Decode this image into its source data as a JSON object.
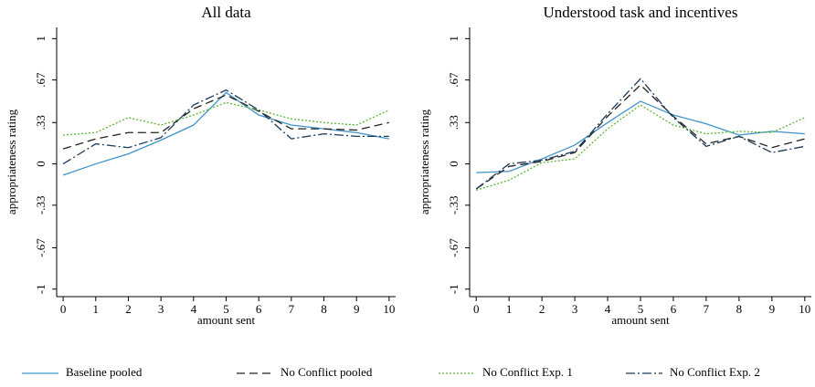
{
  "chart_data": [
    {
      "type": "line",
      "title": "All data",
      "x_label": "amount sent",
      "y_label": "appropriateness rating",
      "x": [
        0,
        1,
        2,
        3,
        4,
        5,
        6,
        7,
        8,
        9,
        10
      ],
      "xlim": [
        -0.2,
        10.2
      ],
      "xticks": [
        0,
        1,
        2,
        3,
        4,
        5,
        6,
        7,
        8,
        9,
        10
      ],
      "ylim": [
        -1.06,
        1.09
      ],
      "yticks": [
        -1,
        {
          "value": -0.67,
          "label": "-.67"
        },
        {
          "value": -0.33,
          "label": "-.33"
        },
        0,
        {
          "value": 0.33,
          "label": ".33"
        },
        {
          "value": 0.67,
          "label": ".67"
        },
        1
      ],
      "series": [
        {
          "name": "Baseline pooled",
          "color": "#3f93c9",
          "dash": "none",
          "values": [
            -0.09,
            0,
            0.08,
            0.19,
            0.31,
            0.57,
            0.39,
            0.31,
            0.28,
            0.25,
            0.2
          ]
        },
        {
          "name": "No Conflict pooled",
          "color": "#222222",
          "dash": "9 5",
          "values": [
            0.12,
            0.2,
            0.25,
            0.25,
            0.44,
            0.55,
            0.42,
            0.28,
            0.28,
            0.27,
            0.33
          ]
        },
        {
          "name": "No Conflict Exp. 1",
          "color": "#5ab534",
          "dash": "2 2",
          "values": [
            0.23,
            0.25,
            0.37,
            0.31,
            0.39,
            0.49,
            0.43,
            0.36,
            0.33,
            0.31,
            0.43
          ]
        },
        {
          "name": "No Conflict Exp. 2",
          "color": "#1a3b5c",
          "dash": "10 3 2 3",
          "values": [
            0,
            0.16,
            0.13,
            0.21,
            0.47,
            0.59,
            0.43,
            0.2,
            0.24,
            0.22,
            0.22
          ]
        }
      ]
    },
    {
      "type": "line",
      "title": "Understood task and incentives",
      "x_label": "amount sent",
      "y_label": "appropriateness rating",
      "x": [
        0,
        1,
        2,
        3,
        4,
        5,
        6,
        7,
        8,
        9,
        10
      ],
      "xlim": [
        -0.2,
        10.2
      ],
      "xticks": [
        0,
        1,
        2,
        3,
        4,
        5,
        6,
        7,
        8,
        9,
        10
      ],
      "ylim": [
        -1.06,
        1.09
      ],
      "yticks": [
        -1,
        {
          "value": -0.67,
          "label": "-.67"
        },
        {
          "value": -0.33,
          "label": "-.33"
        },
        0,
        {
          "value": 0.33,
          "label": ".33"
        },
        {
          "value": 0.67,
          "label": ".67"
        },
        1
      ],
      "series": [
        {
          "name": "Baseline pooled",
          "color": "#3f93c9",
          "dash": "none",
          "values": [
            -0.07,
            -0.06,
            0.04,
            0.15,
            0.33,
            0.5,
            0.39,
            0.32,
            0.23,
            0.26,
            0.24
          ]
        },
        {
          "name": "No Conflict pooled",
          "color": "#222222",
          "dash": "9 5",
          "values": [
            -0.2,
            -0.02,
            0.02,
            0.09,
            0.38,
            0.63,
            0.38,
            0.16,
            0.22,
            0.13,
            0.2
          ]
        },
        {
          "name": "No Conflict Exp. 1",
          "color": "#5ab534",
          "dash": "2 2",
          "values": [
            -0.21,
            -0.13,
            0.01,
            0.04,
            0.28,
            0.47,
            0.31,
            0.24,
            0.26,
            0.25,
            0.37
          ]
        },
        {
          "name": "No Conflict Exp. 2",
          "color": "#1a3b5c",
          "dash": "10 3 2 3",
          "values": [
            -0.2,
            0,
            0.03,
            0.1,
            0.4,
            0.68,
            0.37,
            0.14,
            0.22,
            0.09,
            0.14
          ]
        }
      ]
    }
  ]
}
